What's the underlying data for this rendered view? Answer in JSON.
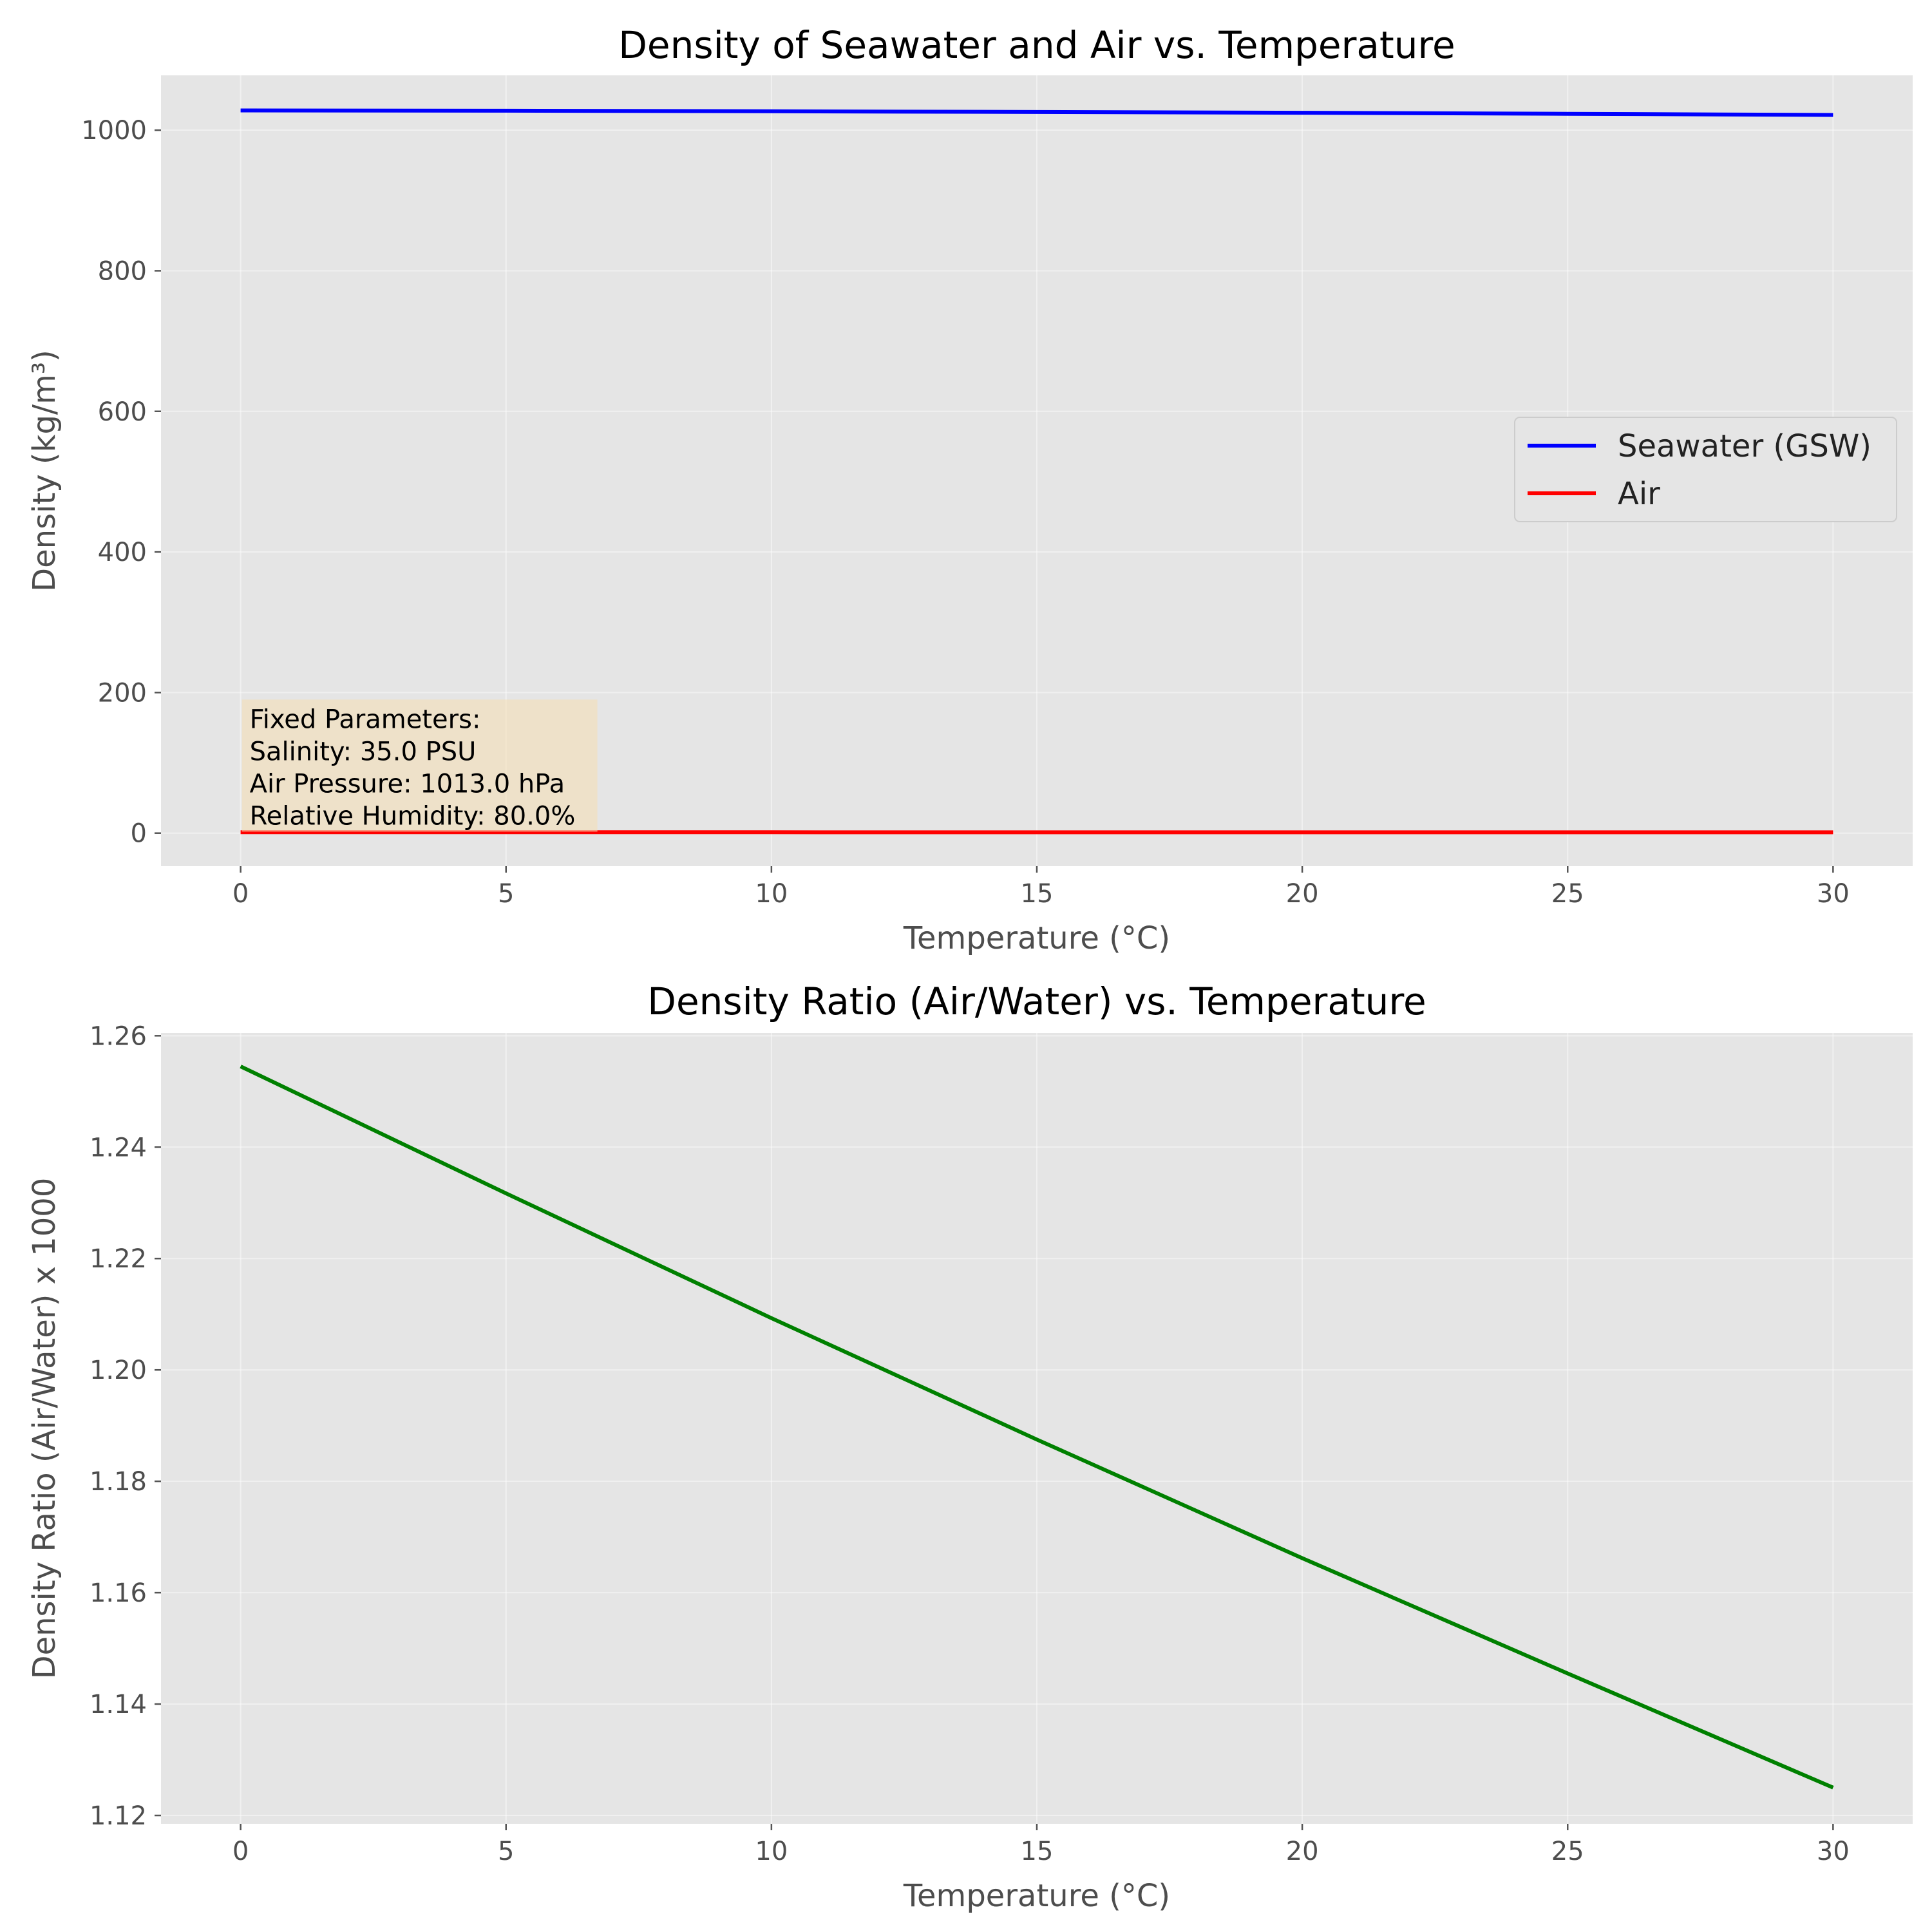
{
  "chart_data": [
    {
      "type": "line",
      "title": "Density of Seawater and Air vs. Temperature",
      "xlabel": "Temperature (°C)",
      "ylabel": "Density (kg/m³)",
      "xlim": [
        -1.5,
        31.5
      ],
      "ylim": [
        -47,
        1078
      ],
      "xticks": [
        0,
        5,
        10,
        15,
        20,
        25,
        30
      ],
      "yticks": [
        0,
        200,
        400,
        600,
        800,
        1000
      ],
      "grid": true,
      "legend_position": "center-right",
      "series": [
        {
          "name": "Seawater (GSW)",
          "color": "#0000ff",
          "x": [
            0,
            5,
            10,
            15,
            20,
            25,
            30
          ],
          "y": [
            1028.1,
            1027.7,
            1026.9,
            1025.9,
            1024.8,
            1023.3,
            1021.7
          ]
        },
        {
          "name": "Air",
          "color": "#ff0000",
          "x": [
            0,
            5,
            10,
            15,
            20,
            25,
            30
          ],
          "y": [
            1.29,
            1.26,
            1.24,
            1.22,
            1.19,
            1.17,
            1.15
          ]
        }
      ],
      "annotation": {
        "lines": [
          "Fixed Parameters:",
          "Salinity: 35.0 PSU",
          "Air Pressure: 1013.0 hPa",
          "Relative Humidity: 80.0%"
        ],
        "background": "#f5deb3"
      }
    },
    {
      "type": "line",
      "title": "Density Ratio (Air/Water) vs. Temperature",
      "xlabel": "Temperature (°C)",
      "ylabel": "Density Ratio (Air/Water) x 1000",
      "xlim": [
        -1.5,
        31.5
      ],
      "ylim": [
        1.1185,
        1.2605
      ],
      "xticks": [
        0,
        5,
        10,
        15,
        20,
        25,
        30
      ],
      "yticks": [
        1.12,
        1.14,
        1.16,
        1.18,
        1.2,
        1.22,
        1.24,
        1.26
      ],
      "ytick_decimals": 2,
      "grid": true,
      "series": [
        {
          "color": "#008000",
          "x": [
            0,
            5,
            10,
            15,
            20,
            25,
            30
          ],
          "y": [
            1.2545,
            1.2317,
            1.2093,
            1.1875,
            1.1662,
            1.1455,
            1.125
          ]
        }
      ]
    }
  ]
}
